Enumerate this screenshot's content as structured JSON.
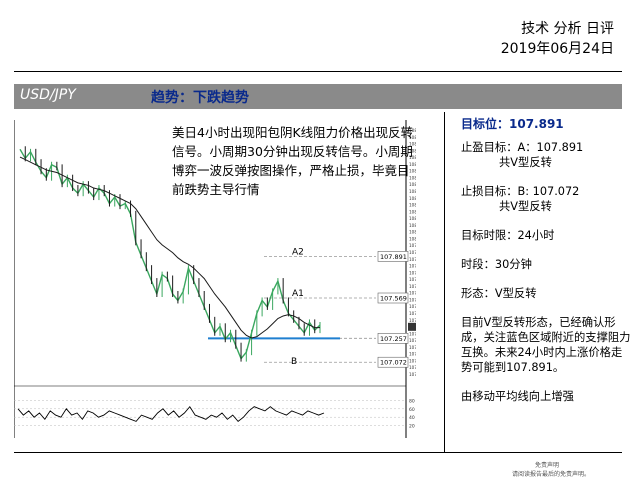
{
  "header": {
    "title": "技术 分析 日评",
    "date": "2019年06月24日"
  },
  "bar": {
    "pair": "USD/JPY",
    "trend": "趋势：下跌趋势"
  },
  "chart_note": "美日4小时出现阳包阴K线阻力价格出现反转信号。小周期30分钟出现反转信号。小周期博弈一波反弹按图操作，严格止损，毕竟目前跌势主导行情",
  "right_panel": {
    "target_title": "目标位：107.891",
    "take_profit_line1": "止盈目标：A：107.891",
    "take_profit_line2": "共V型反转",
    "stop_loss_line1": "止损目标：B: 107.072",
    "stop_loss_line2": "共V型反转",
    "time_limit": "目标时限：24小时",
    "timeframe": "时段：30分钟",
    "pattern": "形态：V型反转",
    "description": "目前V型反转形态，已经确认形成，关注蓝色区域附近的支撑阻力互换。未来24小时内上涨价格走势可能到107.891。",
    "ma_note": "由移动平均线向上增强"
  },
  "footer": {
    "disclaimer_title": "免责声明",
    "disclaimer_text": "请阅读报告最后的免责声明。"
  },
  "colors": {
    "bar_bg": "#8a8a8a",
    "trend_text": "#0a2a8c",
    "support_line": "#1f7fd0",
    "candle_up": "#3aa75f",
    "candle_down": "#1a1a1a",
    "ma_line": "#1a1a1a",
    "level_line": "#999999"
  },
  "chart_data": {
    "type": "line",
    "title": "",
    "xlabel": "",
    "ylabel": "",
    "ylim": [
      106.95,
      108.9
    ],
    "y_ticks": [
      "108.800",
      "108.750",
      "108.700",
      "108.650",
      "108.600",
      "108.550",
      "108.500",
      "108.450",
      "108.400",
      "108.350",
      "108.300",
      "108.250",
      "108.200",
      "108.150",
      "108.100",
      "108.050",
      "108.000",
      "107.975",
      "107.925",
      "107.875",
      "107.825",
      "107.775",
      "107.725",
      "107.675",
      "107.625",
      "107.575",
      "107.525",
      "107.475",
      "107.425",
      "107.375",
      "107.325",
      "107.275",
      "107.225",
      "107.175",
      "107.125",
      "107.075",
      "107.025"
    ],
    "price_series": {
      "name": "",
      "values": [
        108.72,
        108.65,
        108.7,
        108.62,
        108.55,
        108.5,
        108.6,
        108.58,
        108.45,
        108.5,
        108.42,
        108.38,
        108.45,
        108.4,
        108.35,
        108.42,
        108.38,
        108.3,
        108.35,
        108.28,
        108.3,
        108.22,
        108.0,
        107.9,
        107.8,
        107.7,
        107.6,
        107.75,
        107.72,
        107.6,
        107.55,
        107.62,
        107.8,
        107.7,
        107.6,
        107.5,
        107.4,
        107.3,
        107.35,
        107.25,
        107.3,
        107.2,
        107.1,
        107.15,
        107.3,
        107.45,
        107.55,
        107.5,
        107.62,
        107.7,
        107.55,
        107.45,
        107.4,
        107.35,
        107.3,
        107.38,
        107.32,
        107.36
      ]
    },
    "moving_average": {
      "name": "",
      "values": [
        108.66,
        108.64,
        108.62,
        108.6,
        108.58,
        108.56,
        108.55,
        108.54,
        108.52,
        108.5,
        108.48,
        108.46,
        108.45,
        108.44,
        108.42,
        108.41,
        108.4,
        108.38,
        108.36,
        108.34,
        108.32,
        108.3,
        108.26,
        108.2,
        108.14,
        108.08,
        108.02,
        107.98,
        107.95,
        107.92,
        107.88,
        107.85,
        107.83,
        107.8,
        107.76,
        107.72,
        107.66,
        107.6,
        107.55,
        107.5,
        107.44,
        107.38,
        107.32,
        107.28,
        107.26,
        107.27,
        107.3,
        107.33,
        107.37,
        107.41,
        107.43,
        107.44,
        107.43,
        107.41,
        107.38,
        107.36,
        107.34,
        107.34
      ]
    },
    "levels": [
      {
        "label": "A2",
        "value": 107.891,
        "value_label": "107.891"
      },
      {
        "label": "A1",
        "value": 107.569,
        "value_label": "107.569"
      },
      {
        "label": "",
        "value": 107.257,
        "value_label": "107.257"
      },
      {
        "label": "B",
        "value": 107.072,
        "value_label": "107.072"
      }
    ],
    "current_price": "107.346",
    "support_level": 107.257,
    "oscillator": {
      "ylim": [
        0,
        100
      ],
      "y_ticks": [
        "80",
        "60",
        "40",
        "20"
      ],
      "values": [
        60,
        45,
        55,
        40,
        50,
        35,
        55,
        45,
        40,
        60,
        45,
        50,
        35,
        55,
        50,
        40,
        45,
        55,
        50,
        45,
        40,
        35,
        30,
        45,
        40,
        35,
        50,
        60,
        45,
        55,
        40,
        50,
        65,
        45,
        40,
        35,
        45,
        40,
        50,
        35,
        45,
        30,
        40,
        55,
        65,
        60,
        55,
        65,
        55,
        50,
        45,
        55,
        50,
        45,
        55,
        50,
        45,
        50
      ]
    }
  }
}
